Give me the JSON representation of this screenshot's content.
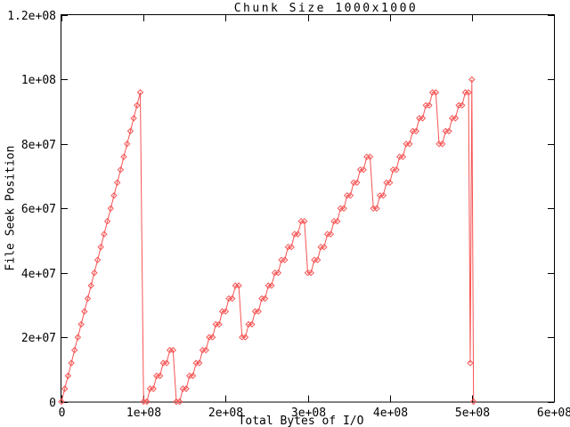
{
  "title": "Chunk Size 1000x1000",
  "axes": {
    "x": {
      "label": "Total Bytes of I/O",
      "ticks": [
        {
          "value": 0,
          "label": "0"
        },
        {
          "value": 100000000,
          "label": "1e+08"
        },
        {
          "value": 200000000,
          "label": "2e+08"
        },
        {
          "value": 300000000,
          "label": "3e+08"
        },
        {
          "value": 400000000,
          "label": "4e+08"
        },
        {
          "value": 500000000,
          "label": "5e+08"
        },
        {
          "value": 600000000,
          "label": "6e+08"
        }
      ]
    },
    "y": {
      "label": "File Seek Position",
      "ticks": [
        {
          "value": 0,
          "label": "0"
        },
        {
          "value": 20000000,
          "label": "2e+07"
        },
        {
          "value": 40000000,
          "label": "4e+07"
        },
        {
          "value": 60000000,
          "label": "6e+07"
        },
        {
          "value": 80000000,
          "label": "8e+07"
        },
        {
          "value": 100000000,
          "label": "1e+08"
        },
        {
          "value": 120000000,
          "label": "1.2e+08"
        }
      ]
    }
  },
  "colors": {
    "line": "#f65454",
    "text": "#000000",
    "border": "#000000",
    "background": "#ffffff"
  },
  "chart_data": {
    "type": "line",
    "title": "Chunk Size 1000x1000",
    "xlabel": "Total Bytes of I/O",
    "ylabel": "File Seek Position",
    "xlim": [
      0,
      600000000
    ],
    "ylim": [
      0,
      120000000
    ],
    "grid": false,
    "legend": "none",
    "tick_style": "inward-mirrored",
    "point_unit_bytes": 1000000,
    "series": [
      {
        "name": "file-seek-position",
        "color": "#f65454",
        "marker": "open-diamond",
        "points_millions": [
          [
            0,
            0
          ],
          [
            4,
            4
          ],
          [
            8,
            8
          ],
          [
            12,
            12
          ],
          [
            16,
            16
          ],
          [
            20,
            20
          ],
          [
            24,
            24
          ],
          [
            28,
            28
          ],
          [
            32,
            32
          ],
          [
            36,
            36
          ],
          [
            40,
            40
          ],
          [
            44,
            44
          ],
          [
            48,
            48
          ],
          [
            52,
            52
          ],
          [
            56,
            56
          ],
          [
            60,
            60
          ],
          [
            64,
            64
          ],
          [
            68,
            68
          ],
          [
            72,
            72
          ],
          [
            76,
            76
          ],
          [
            80,
            80
          ],
          [
            84,
            84
          ],
          [
            88,
            88
          ],
          [
            92,
            92
          ],
          [
            96,
            96
          ],
          [
            100,
            0
          ],
          [
            104,
            0
          ],
          [
            108,
            4
          ],
          [
            112,
            4
          ],
          [
            116,
            8
          ],
          [
            120,
            8
          ],
          [
            124,
            12
          ],
          [
            128,
            12
          ],
          [
            132,
            16
          ],
          [
            136,
            16
          ],
          [
            140,
            0
          ],
          [
            144,
            0
          ],
          [
            148,
            4
          ],
          [
            152,
            4
          ],
          [
            156,
            8
          ],
          [
            160,
            8
          ],
          [
            164,
            12
          ],
          [
            168,
            12
          ],
          [
            172,
            16
          ],
          [
            176,
            16
          ],
          [
            180,
            20
          ],
          [
            184,
            20
          ],
          [
            188,
            24
          ],
          [
            192,
            24
          ],
          [
            196,
            28
          ],
          [
            200,
            28
          ],
          [
            204,
            32
          ],
          [
            208,
            32
          ],
          [
            212,
            36
          ],
          [
            216,
            36
          ],
          [
            220,
            20
          ],
          [
            224,
            20
          ],
          [
            228,
            24
          ],
          [
            232,
            24
          ],
          [
            236,
            28
          ],
          [
            240,
            28
          ],
          [
            244,
            32
          ],
          [
            248,
            32
          ],
          [
            252,
            36
          ],
          [
            256,
            36
          ],
          [
            260,
            40
          ],
          [
            264,
            40
          ],
          [
            268,
            44
          ],
          [
            272,
            44
          ],
          [
            276,
            48
          ],
          [
            280,
            48
          ],
          [
            284,
            52
          ],
          [
            288,
            52
          ],
          [
            292,
            56
          ],
          [
            296,
            56
          ],
          [
            300,
            40
          ],
          [
            304,
            40
          ],
          [
            308,
            44
          ],
          [
            312,
            44
          ],
          [
            316,
            48
          ],
          [
            320,
            48
          ],
          [
            324,
            52
          ],
          [
            328,
            52
          ],
          [
            332,
            56
          ],
          [
            336,
            56
          ],
          [
            340,
            60
          ],
          [
            344,
            60
          ],
          [
            348,
            64
          ],
          [
            352,
            64
          ],
          [
            356,
            68
          ],
          [
            360,
            68
          ],
          [
            364,
            72
          ],
          [
            368,
            72
          ],
          [
            372,
            76
          ],
          [
            376,
            76
          ],
          [
            380,
            60
          ],
          [
            384,
            60
          ],
          [
            388,
            64
          ],
          [
            392,
            64
          ],
          [
            396,
            68
          ],
          [
            400,
            68
          ],
          [
            404,
            72
          ],
          [
            408,
            72
          ],
          [
            412,
            76
          ],
          [
            416,
            76
          ],
          [
            420,
            80
          ],
          [
            424,
            80
          ],
          [
            428,
            84
          ],
          [
            432,
            84
          ],
          [
            436,
            88
          ],
          [
            440,
            88
          ],
          [
            444,
            92
          ],
          [
            448,
            92
          ],
          [
            452,
            96
          ],
          [
            456,
            96
          ],
          [
            460,
            80
          ],
          [
            464,
            80
          ],
          [
            468,
            84
          ],
          [
            472,
            84
          ],
          [
            476,
            88
          ],
          [
            480,
            88
          ],
          [
            484,
            92
          ],
          [
            488,
            92
          ],
          [
            492,
            96
          ],
          [
            496,
            96
          ],
          [
            498,
            12
          ],
          [
            500,
            100
          ],
          [
            502,
            0
          ]
        ]
      }
    ]
  }
}
